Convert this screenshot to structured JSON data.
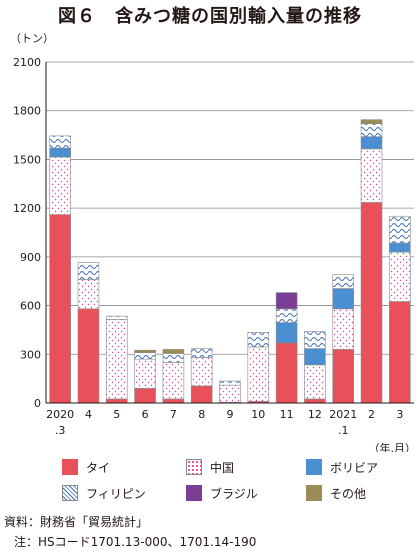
{
  "title": "図６　含みつ糖の国別輸入量の推移",
  "chart_data": {
    "type": "bar",
    "stacked": true,
    "y_unit_label": "（トン）",
    "x_unit_label": "（年.月）",
    "ylim": [
      0,
      2100
    ],
    "yticks": [
      0,
      300,
      600,
      900,
      1200,
      1500,
      1800,
      2100
    ],
    "grid": true,
    "categories": [
      "2020 .3",
      "4",
      "5",
      "6",
      "7",
      "8",
      "9",
      "10",
      "11",
      "12",
      "2021 .1",
      "2",
      "3"
    ],
    "series": [
      {
        "name": "タイ",
        "color": "#e9515a",
        "pattern": "solid",
        "values": [
          1160,
          580,
          25,
          90,
          25,
          105,
          5,
          10,
          370,
          25,
          330,
          1235,
          625
        ]
      },
      {
        "name": "中国",
        "color": "#e0468f",
        "pattern": "dots",
        "values": [
          355,
          180,
          490,
          180,
          225,
          175,
          105,
          335,
          0,
          210,
          250,
          330,
          305
        ]
      },
      {
        "name": "ボリビア",
        "color": "#4a8fd1",
        "pattern": "solid",
        "values": [
          55,
          0,
          0,
          0,
          0,
          0,
          0,
          0,
          125,
          100,
          125,
          75,
          55
        ]
      },
      {
        "name": "フィリピン",
        "color": "#3d6fb5",
        "pattern": "waves",
        "values": [
          75,
          105,
          20,
          40,
          55,
          55,
          25,
          90,
          85,
          105,
          85,
          80,
          165
        ]
      },
      {
        "name": "ブラジル",
        "color": "#7a3e97",
        "pattern": "solid",
        "values": [
          0,
          0,
          0,
          0,
          0,
          0,
          0,
          0,
          100,
          0,
          0,
          0,
          0
        ]
      },
      {
        "name": "その他",
        "color": "#9b8b55",
        "pattern": "solid",
        "values": [
          0,
          0,
          0,
          15,
          25,
          0,
          0,
          0,
          0,
          0,
          0,
          25,
          0
        ]
      }
    ]
  },
  "notes": {
    "source": "資料：財務省「貿易統計」",
    "note": "注：HSコード1701.13-000、1701.14-190"
  }
}
